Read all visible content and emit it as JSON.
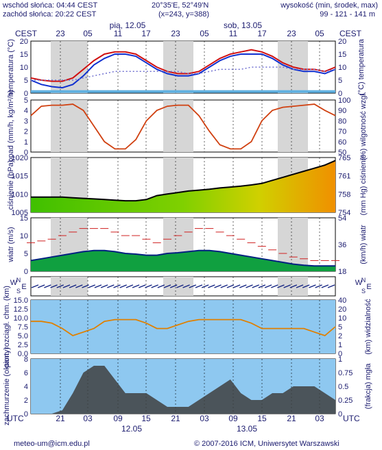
{
  "header": {
    "sunrise": "wschód słońca: 04:44 CEST",
    "sunset": "zachód słońca: 20:22 CEST",
    "coords": "20°35'E, 52°49'N",
    "grid": "(x=243, y=388)",
    "height_label": "wysokość (min, środek, max)",
    "height_values": "99 - 121 - 141 m"
  },
  "footer": {
    "email": "meteo-um@icm.edu.pl",
    "copyright": "© 2007-2016 ICM, Uniwersytet Warszawski"
  },
  "colors": {
    "night_band": "#d6d6d6",
    "temp_max": "#d01010",
    "temp_mean": "#1030d0",
    "dew_point": "#7070d0",
    "precip_line": "#d04010",
    "pressure_line": "#000000",
    "wind_gust": "#d02020",
    "vis_line": "#e08000",
    "cloud_fill": "#404040"
  },
  "chart_data": [
    {
      "name": "temperature",
      "type": "line",
      "ylabel_left": "temperatura (°C)",
      "ylabel_right": "(°C) temperatura",
      "ylim": [
        -2,
        22
      ],
      "ticks_left": [
        "0",
        "5",
        "10",
        "15",
        "20"
      ],
      "ticks_right": [
        "0",
        "5",
        "10",
        "15",
        "20"
      ],
      "series": [
        {
          "values": [
            5,
            4,
            3.5,
            3.5,
            5,
            9,
            13,
            16,
            17,
            17,
            16,
            13,
            10,
            8,
            7,
            7,
            8,
            11,
            14,
            16,
            17,
            18,
            17,
            15,
            12,
            10,
            9,
            9,
            8,
            10
          ]
        },
        {
          "values": [
            4,
            2,
            1,
            0.5,
            2,
            6,
            11,
            14,
            16,
            16,
            15,
            12,
            9,
            7,
            6,
            6,
            7,
            10,
            13,
            15,
            16,
            16,
            16,
            14,
            11,
            9,
            8,
            8,
            7,
            9
          ]
        },
        {
          "values": [
            4,
            4,
            4,
            4,
            4,
            5,
            6,
            7,
            8,
            8,
            8,
            8,
            8,
            8,
            8,
            7,
            7,
            8,
            9,
            9,
            9,
            10,
            10,
            10,
            10,
            9,
            9,
            9,
            8,
            9
          ]
        }
      ]
    },
    {
      "name": "precipitation",
      "type": "line",
      "ylabel_left": "opad (mm/h, kg/m²/h)",
      "ylabel_right": "(%) wilgotność wzgl.",
      "ylim": [
        0,
        5
      ],
      "ticks_left": [
        "0",
        "1",
        "2",
        "3",
        "4",
        "5"
      ],
      "ticks_right": [
        "50",
        "60",
        "70",
        "80",
        "90",
        "100"
      ],
      "values": [
        3.5,
        4.4,
        4.5,
        4.5,
        4.6,
        4.0,
        2.5,
        1.0,
        0.3,
        0.3,
        1.2,
        3.0,
        4.0,
        4.4,
        4.5,
        4.5,
        3.5,
        2.0,
        0.7,
        0.3,
        0.3,
        1.0,
        3.0,
        4.0,
        4.3,
        4.4,
        4.5,
        4.6,
        4.0,
        3.5
      ]
    },
    {
      "name": "pressure",
      "type": "area",
      "ylabel_left": "ciśnienie (hPa)",
      "ylabel_right": "(mm Hg) ciśnienie",
      "ylim": [
        1005,
        1023
      ],
      "ticks_left": [
        "1005",
        "1010",
        "1015",
        "1020"
      ],
      "ticks_right": [
        "754",
        "758",
        "761",
        "765"
      ],
      "values": [
        1010,
        1010,
        1010,
        1010,
        1009.8,
        1009.6,
        1009.4,
        1009.2,
        1009,
        1008.8,
        1008.8,
        1009.2,
        1010.5,
        1011,
        1011.5,
        1012,
        1012.3,
        1012.6,
        1013,
        1013.3,
        1013.6,
        1014,
        1014.5,
        1015.5,
        1016.5,
        1017.5,
        1018.5,
        1019.5,
        1020.5,
        1022
      ]
    },
    {
      "name": "wind",
      "type": "area",
      "ylabel_left": "wiatr (m/s)",
      "ylabel_right": "(km/h) wiatr",
      "ylim": [
        0,
        15
      ],
      "ticks_left": [
        "0",
        "5",
        "10",
        "15"
      ],
      "ticks_right": [
        "18",
        "36",
        "54"
      ],
      "series": [
        {
          "values": [
            8,
            8.5,
            9,
            10,
            11,
            12,
            12,
            12,
            11,
            10,
            10,
            9,
            8,
            9,
            10,
            11,
            12,
            12,
            11,
            10,
            9,
            8,
            7,
            6,
            5,
            4,
            3.5,
            3,
            3,
            3
          ]
        },
        {
          "values": [
            3,
            3.5,
            4,
            4.5,
            5,
            5.5,
            5.8,
            5.8,
            5.5,
            5,
            4.8,
            4.5,
            4.5,
            5,
            5.2,
            5.5,
            5.8,
            5.8,
            5.5,
            5,
            4.5,
            4,
            3.5,
            3,
            2.5,
            2,
            1.7,
            1.5,
            1.5,
            1.5
          ]
        }
      ]
    },
    {
      "name": "visibility",
      "type": "line",
      "ylabel_left": "pion. rozciągł. chm. (km)",
      "ylabel_right": "(km) widzialność",
      "ylim": [
        0,
        15
      ],
      "ticks_left": [
        "0.0",
        "2.5",
        "5.0",
        "7.5",
        "10.0",
        "12.5",
        "15.0"
      ],
      "ticks_right": [
        "0",
        "1",
        "2",
        "5",
        "10",
        "20",
        "40"
      ],
      "values": [
        9,
        9,
        8.5,
        7,
        5,
        6,
        7,
        9,
        9.5,
        9.5,
        9.5,
        8.5,
        7,
        7,
        8,
        9,
        9.5,
        9.5,
        9.5,
        9.5,
        9.5,
        8.5,
        7,
        7,
        7,
        7,
        7,
        6,
        5,
        7.5
      ]
    },
    {
      "name": "cloud",
      "type": "area",
      "ylabel_left": "zachmurzenie (oktanty)",
      "ylabel_right": "(frakcja) mgła",
      "ylim": [
        0,
        8
      ],
      "ticks_left": [
        "0",
        "2",
        "4",
        "6",
        "8"
      ],
      "ticks_right": [
        "0",
        "0.25",
        "0.5",
        "0.75",
        "1"
      ],
      "values": [
        0,
        0,
        0,
        0.5,
        3,
        6,
        7,
        7,
        5,
        3,
        3,
        3,
        2,
        1,
        1,
        1,
        2,
        3,
        4,
        5,
        3,
        2,
        2,
        3,
        3,
        4,
        4,
        4,
        3,
        2
      ]
    }
  ],
  "axis": {
    "top_label_left": "CEST",
    "top_label_right": "CEST",
    "top_ticks": [
      "23",
      "05",
      "11",
      "17",
      "23",
      "05",
      "11",
      "17",
      "23",
      "05"
    ],
    "top_days": [
      "pią, 12.05",
      "sob, 13.05"
    ],
    "bottom_label_left": "UTC",
    "bottom_label_right": "UTC",
    "bottom_ticks": [
      "21",
      "03",
      "09",
      "15",
      "21",
      "03",
      "09",
      "15",
      "21",
      "03"
    ],
    "bottom_days": [
      "12.05",
      "13.05"
    ],
    "wind_dir": [
      "N",
      "S",
      "W",
      "E"
    ]
  }
}
